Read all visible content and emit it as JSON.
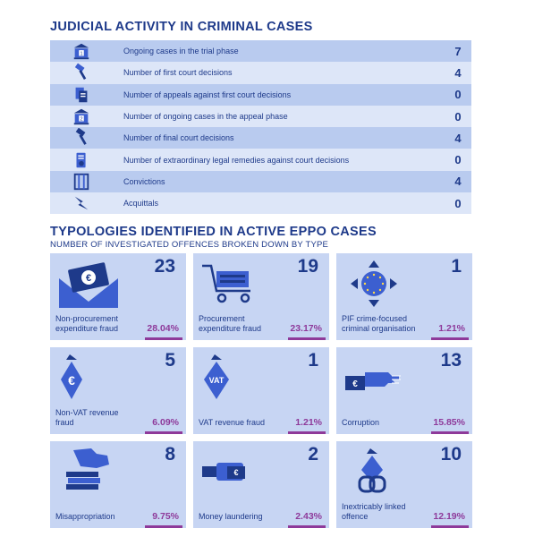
{
  "judicial": {
    "title": "JUDICIAL ACTIVITY IN CRIMINAL CASES",
    "rows": [
      {
        "icon": "courthouse-1-icon",
        "label": "Ongoing cases in the trial phase",
        "value": "7"
      },
      {
        "icon": "gavel-icon",
        "label": "Number of first court decisions",
        "value": "4"
      },
      {
        "icon": "appeal-documents-icon",
        "label": "Number of appeals against first court decisions",
        "value": "0"
      },
      {
        "icon": "courthouse-2-icon",
        "label": "Number of ongoing cases in the appeal phase",
        "value": "0"
      },
      {
        "icon": "gavel-final-icon",
        "label": "Number of final court decisions",
        "value": "4"
      },
      {
        "icon": "legal-remedy-icon",
        "label": "Number of extraordinary legal remedies against court decisions",
        "value": "0"
      },
      {
        "icon": "prison-bars-icon",
        "label": "Convictions",
        "value": "4"
      },
      {
        "icon": "acquittal-arrow-icon",
        "label": "Acquittals",
        "value": "0"
      }
    ]
  },
  "typologies": {
    "title": "TYPOLOGIES IDENTIFIED IN ACTIVE EPPO CASES",
    "subtitle": "NUMBER OF INVESTIGATED OFFENCES BROKEN DOWN BY TYPE",
    "cards": [
      {
        "icon": "euro-envelope-icon",
        "count": "23",
        "name": "Non-procurement expenditure fraud",
        "percent": "28.04%",
        "share": 28.04
      },
      {
        "icon": "shopping-cart-money-icon",
        "count": "19",
        "name": "Procurement expenditure fraud",
        "percent": "23.17%",
        "share": 23.17
      },
      {
        "icon": "eu-flag-arrows-icon",
        "count": "1",
        "name": "PIF crime-focused criminal organisation",
        "percent": "1.21%",
        "share": 1.21
      },
      {
        "icon": "euro-money-bag-icon",
        "count": "5",
        "name": "Non-VAT revenue fraud",
        "percent": "6.09%",
        "share": 6.09
      },
      {
        "icon": "vat-money-bag-icon",
        "count": "1",
        "name": "VAT revenue fraud",
        "percent": "1.21%",
        "share": 1.21
      },
      {
        "icon": "handshake-euro-icon",
        "count": "13",
        "name": "Corruption",
        "percent": "15.85%",
        "share": 15.85
      },
      {
        "icon": "hand-banknotes-icon",
        "count": "8",
        "name": "Misappropriation",
        "percent": "9.75%",
        "share": 9.75
      },
      {
        "icon": "laundering-hand-icon",
        "count": "2",
        "name": "Money laundering",
        "percent": "2.43%",
        "share": 2.43
      },
      {
        "icon": "linked-chain-bag-icon",
        "count": "10",
        "name": "Inextricably linked offence",
        "percent": "12.19%",
        "share": 12.19
      }
    ]
  },
  "colors": {
    "navy": "#1e3a8a",
    "accent": "#3c5fd0",
    "purple": "#8e3a9a",
    "row_dark": "#b9cbef",
    "row_light": "#dde6f8",
    "card": "#c7d5f3"
  }
}
